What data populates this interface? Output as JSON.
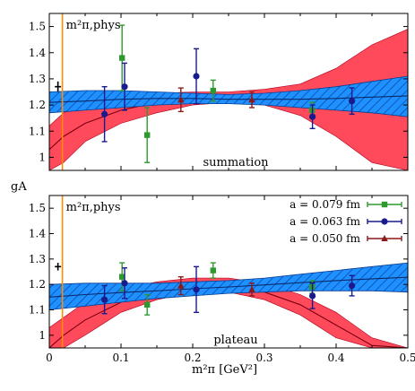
{
  "chart_data": [
    {
      "type": "scatter",
      "panel": "top",
      "annotation": "summation",
      "phys_label": "m²π,phys",
      "ylabel": "",
      "xlabel": "",
      "xlim": [
        0,
        0.5
      ],
      "ylim": [
        0.95,
        1.55
      ],
      "yticks": [
        1.0,
        1.1,
        1.2,
        1.3,
        1.4,
        1.5
      ],
      "phys_point": {
        "x": 0.0183,
        "y": 1.27,
        "yerr": 0.02
      },
      "series": [
        {
          "name": "a = 0.079 fm",
          "color": "#2e9a2e",
          "marker": "square",
          "points": [
            {
              "x": 0.098,
              "y": 1.38,
              "err": 0.125
            },
            {
              "x": 0.133,
              "y": 1.085,
              "err": 0.105
            },
            {
              "x": 0.225,
              "y": 1.255,
              "err": 0.04
            },
            {
              "x": 0.363,
              "y": 1.18,
              "err": 0.03
            }
          ]
        },
        {
          "name": "a = 0.063 fm",
          "color": "#1a1a8c",
          "marker": "circle",
          "points": [
            {
              "x": 0.077,
              "y": 1.165,
              "err": 0.105
            },
            {
              "x": 0.105,
              "y": 1.27,
              "err": 0.09
            },
            {
              "x": 0.205,
              "y": 1.31,
              "err": 0.105
            },
            {
              "x": 0.367,
              "y": 1.155,
              "err": 0.045
            },
            {
              "x": 0.422,
              "y": 1.215,
              "err": 0.05
            }
          ]
        },
        {
          "name": "a = 0.050 fm",
          "color": "#8b1a1a",
          "marker": "triangle",
          "points": [
            {
              "x": 0.187,
              "y": 1.22,
              "err": 0.045
            },
            {
              "x": 0.286,
              "y": 1.22,
              "err": 0.03
            }
          ]
        }
      ],
      "red_band": {
        "x": [
          0.0,
          0.02,
          0.05,
          0.1,
          0.15,
          0.2,
          0.25,
          0.3,
          0.35,
          0.4,
          0.45,
          0.5
        ],
        "lower": [
          0.95,
          0.98,
          1.06,
          1.13,
          1.17,
          1.2,
          1.21,
          1.2,
          1.16,
          1.08,
          0.98,
          0.95
        ],
        "upper": [
          1.12,
          1.17,
          1.21,
          1.23,
          1.245,
          1.25,
          1.25,
          1.26,
          1.28,
          1.34,
          1.43,
          1.49
        ],
        "center": [
          1.03,
          1.08,
          1.13,
          1.18,
          1.21,
          1.225,
          1.23,
          1.23,
          1.22,
          1.21,
          1.2,
          1.21
        ]
      },
      "blue_band": {
        "x": [
          0.0,
          0.05,
          0.1,
          0.15,
          0.2,
          0.25,
          0.3,
          0.35,
          0.4,
          0.45,
          0.5
        ],
        "lower": [
          1.17,
          1.18,
          1.19,
          1.2,
          1.205,
          1.205,
          1.2,
          1.19,
          1.18,
          1.17,
          1.155
        ],
        "upper": [
          1.25,
          1.255,
          1.255,
          1.25,
          1.245,
          1.24,
          1.245,
          1.255,
          1.27,
          1.29,
          1.31
        ],
        "center": [
          1.21,
          1.215,
          1.222,
          1.225,
          1.225,
          1.222,
          1.222,
          1.222,
          1.225,
          1.23,
          1.235
        ]
      }
    },
    {
      "type": "scatter",
      "panel": "bottom",
      "annotation": "plateau",
      "phys_label": "m²π,phys",
      "ylabel": "gA",
      "xlabel": "m²π [GeV²]",
      "xlim": [
        0,
        0.5
      ],
      "ylim": [
        0.95,
        1.55
      ],
      "xticks": [
        0,
        0.1,
        0.2,
        0.3,
        0.4,
        0.5
      ],
      "yticks": [
        1.0,
        1.1,
        1.2,
        1.3,
        1.4,
        1.5
      ],
      "phys_point": {
        "x": 0.0183,
        "y": 1.27,
        "yerr": 0.015
      },
      "legend": [
        "a = 0.079 fm",
        "a = 0.063 fm",
        "a = 0.050 fm"
      ],
      "series": [
        {
          "name": "a = 0.079 fm",
          "color": "#2e9a2e",
          "marker": "square",
          "points": [
            {
              "x": 0.098,
              "y": 1.23,
              "err": 0.055
            },
            {
              "x": 0.133,
              "y": 1.12,
              "err": 0.04
            },
            {
              "x": 0.225,
              "y": 1.255,
              "err": 0.03
            },
            {
              "x": 0.363,
              "y": 1.19,
              "err": 0.025
            }
          ]
        },
        {
          "name": "a = 0.063 fm",
          "color": "#1a1a8c",
          "marker": "circle",
          "points": [
            {
              "x": 0.077,
              "y": 1.14,
              "err": 0.055
            },
            {
              "x": 0.105,
              "y": 1.205,
              "err": 0.06
            },
            {
              "x": 0.205,
              "y": 1.18,
              "err": 0.09
            },
            {
              "x": 0.367,
              "y": 1.155,
              "err": 0.05
            },
            {
              "x": 0.422,
              "y": 1.195,
              "err": 0.04
            }
          ]
        },
        {
          "name": "a = 0.050 fm",
          "color": "#8b1a1a",
          "marker": "triangle",
          "points": [
            {
              "x": 0.187,
              "y": 1.195,
              "err": 0.035
            },
            {
              "x": 0.286,
              "y": 1.18,
              "err": 0.025
            }
          ]
        }
      ],
      "red_band": {
        "x": [
          0.0,
          0.02,
          0.05,
          0.1,
          0.15,
          0.2,
          0.25,
          0.3,
          0.35,
          0.4,
          0.45,
          0.5
        ],
        "lower": [
          0.95,
          0.95,
          1.0,
          1.09,
          1.14,
          1.17,
          1.17,
          1.14,
          1.08,
          0.99,
          0.95,
          0.95
        ],
        "upper": [
          1.03,
          1.07,
          1.13,
          1.18,
          1.21,
          1.225,
          1.225,
          1.205,
          1.16,
          1.09,
          0.99,
          0.95
        ],
        "center": [
          0.95,
          1.0,
          1.06,
          1.13,
          1.17,
          1.195,
          1.195,
          1.17,
          1.12,
          1.04,
          0.96,
          0.95
        ]
      },
      "blue_band": {
        "x": [
          0.0,
          0.05,
          0.1,
          0.15,
          0.2,
          0.25,
          0.3,
          0.35,
          0.4,
          0.45,
          0.5
        ],
        "lower": [
          1.1,
          1.115,
          1.13,
          1.145,
          1.155,
          1.165,
          1.17,
          1.175,
          1.175,
          1.175,
          1.17
        ],
        "upper": [
          1.2,
          1.205,
          1.205,
          1.205,
          1.21,
          1.215,
          1.225,
          1.24,
          1.255,
          1.27,
          1.285
        ],
        "center": [
          1.15,
          1.16,
          1.168,
          1.175,
          1.183,
          1.19,
          1.198,
          1.207,
          1.215,
          1.222,
          1.228
        ]
      }
    }
  ]
}
